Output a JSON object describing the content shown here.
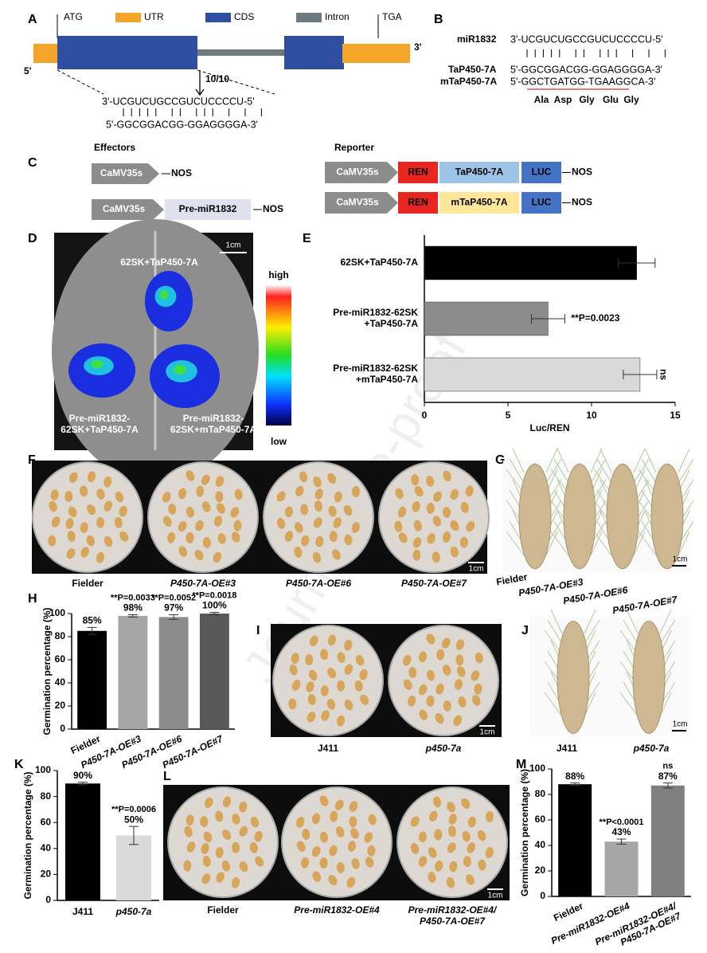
{
  "panel_labels": [
    "A",
    "B",
    "C",
    "D",
    "E",
    "F",
    "G",
    "H",
    "I",
    "J",
    "K",
    "L",
    "M"
  ],
  "watermark": "Journal Pre-proof",
  "gene_model": {
    "start": "ATG",
    "stop": "TGA",
    "legend": [
      "UTR",
      "CDS",
      "Intron"
    ],
    "end_3": "3'",
    "end_5": "5'",
    "cleavage": "10/10",
    "mirna": "3'-UCGUCUGCCGUCUCCCCU-5'",
    "target": "5'-GGCGGACGG-GGAGGGGA-3'"
  },
  "alignment": {
    "rows": [
      {
        "name": "miR1832",
        "seq": "3'-UCGUCUGCCGUCUCCCCU-5'"
      },
      {
        "name": "TaP450-7A",
        "seq": "5'-GGCGGACGG-GGAGGGGA-3'"
      },
      {
        "name": "mTaP450-7A",
        "seq": "5'-GGCTGATGG-TGAAGGCA-3'"
      }
    ],
    "amino_acids": [
      "Ala",
      "Asp",
      "Gly",
      "Glu",
      "Gly"
    ]
  },
  "constructs": {
    "effectors_title": "Effectors",
    "reporter_title": "Reporter",
    "promoter": "CaMV35s",
    "terminator": "NOS",
    "pre_mirna": "Pre-miR1832",
    "ren": "REN",
    "luc": "LUC",
    "target": "TaP450-7A",
    "mutant": "mTaP450-7A"
  },
  "imaging": {
    "scale": "1cm",
    "samples": [
      "62SK+TaP450-7A",
      [
        "Pre-miR1832-",
        "62SK+TaP450-7A"
      ],
      [
        "Pre-miR1832-",
        "62SK+mTaP450-7A"
      ]
    ],
    "high": "high",
    "low": "low"
  },
  "plates_F": {
    "scale": "1cm",
    "labels": [
      "Fielder",
      "P450-7A-OE#3",
      "P450-7A-OE#6",
      "P450-7A-OE#7"
    ]
  },
  "spikes_G": {
    "scale": "1cm",
    "labels": [
      "Fielder",
      "P450-7A-OE#3",
      "P450-7A-OE#6",
      "P450-7A-OE#7"
    ]
  },
  "plates_I": {
    "scale": "1cm",
    "labels": [
      "J411",
      "p450-7a"
    ]
  },
  "spikes_J": {
    "scale": "1cm",
    "labels": [
      "J411",
      "p450-7a"
    ]
  },
  "plates_L": {
    "scale": "1cm",
    "labels": [
      "Fielder",
      "Pre-miR1832-OE#4",
      [
        "Pre-miR1832-OE#4/",
        "P450-7A-OE#7"
      ]
    ]
  },
  "chart_data": [
    {
      "type": "bar",
      "orientation": "horizontal",
      "categories": [
        [
          "62SK+TaP450-7A"
        ],
        [
          "Pre-miR1832-62SK",
          "+TaP450-7A"
        ],
        [
          "Pre-miR1832-62SK",
          "+mTaP450-7A"
        ]
      ],
      "values": [
        12.7,
        7.4,
        12.9
      ],
      "errors": [
        1.1,
        1.0,
        1.0
      ],
      "colors": [
        "#000000",
        "#8c8c8c",
        "#d9d9d9"
      ],
      "annotations": [
        null,
        "**P=0.0023",
        "ns"
      ],
      "xlabel": "Luc/REN",
      "xlim": [
        0,
        15
      ],
      "xticks": [
        0,
        5,
        10,
        15
      ]
    },
    {
      "type": "bar",
      "categories": [
        "Fielder",
        "P450-7A-OE#3",
        "P450-7A-OE#6",
        "P450-7A-OE#7"
      ],
      "values": [
        85,
        98,
        97,
        100
      ],
      "errors": [
        3,
        1,
        2,
        1
      ],
      "value_labels": [
        "85%",
        "98%",
        "97%",
        "100%"
      ],
      "colors": [
        "#000000",
        "#a6a6a6",
        "#8c8c8c",
        "#595959"
      ],
      "annotations": [
        null,
        "**P=0.0033",
        "**P=0.0052",
        "**P=0.0018"
      ],
      "ylabel": "Germination percentage (%)",
      "ylim": [
        0,
        100
      ],
      "yticks": [
        0,
        20,
        40,
        60,
        80,
        100
      ]
    },
    {
      "type": "bar",
      "categories": [
        "J411",
        "p450-7a"
      ],
      "values": [
        90,
        50
      ],
      "errors": [
        1,
        7
      ],
      "value_labels": [
        "90%",
        "50%"
      ],
      "colors": [
        "#000000",
        "#d9d9d9"
      ],
      "annotations": [
        null,
        "**P=0.0006"
      ],
      "ylabel": "Germination percentage (%)",
      "ylim": [
        0,
        100
      ],
      "yticks": [
        0,
        20,
        40,
        60,
        80,
        100
      ]
    },
    {
      "type": "bar",
      "categories": [
        [
          "Fielder"
        ],
        [
          "Pre-miR1832-OE#4"
        ],
        [
          "Pre-miR1832-OE#4/",
          "P450-7A-OE#7"
        ]
      ],
      "values": [
        88,
        43,
        87
      ],
      "errors": [
        1,
        2,
        2
      ],
      "value_labels": [
        "88%",
        "43%",
        "87%"
      ],
      "colors": [
        "#000000",
        "#a6a6a6",
        "#808080"
      ],
      "annotations": [
        null,
        "**P<0.0001",
        "ns"
      ],
      "ylabel": "Germination percentage (%)",
      "ylim": [
        0,
        100
      ],
      "yticks": [
        0,
        20,
        40,
        60,
        80,
        100
      ]
    }
  ]
}
